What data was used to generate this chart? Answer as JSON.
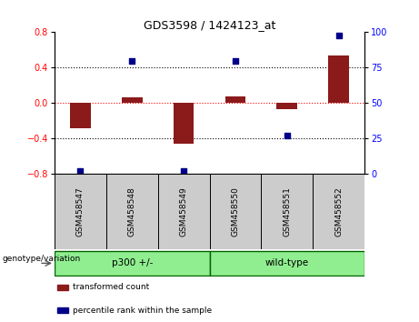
{
  "title": "GDS3598 / 1424123_at",
  "samples": [
    "GSM458547",
    "GSM458548",
    "GSM458549",
    "GSM458550",
    "GSM458551",
    "GSM458552"
  ],
  "red_values": [
    -0.28,
    0.06,
    -0.46,
    0.07,
    -0.07,
    0.54
  ],
  "blue_values_pct": [
    2,
    80,
    2,
    80,
    27,
    98
  ],
  "group_label": "genotype/variation",
  "group_info": [
    {
      "label": "p300 +/-",
      "start": 0,
      "end": 3,
      "color": "#90EE90"
    },
    {
      "label": "wild-type",
      "start": 3,
      "end": 6,
      "color": "#90EE90"
    }
  ],
  "ylim_left": [
    -0.8,
    0.8
  ],
  "ylim_right": [
    0,
    100
  ],
  "yticks_left": [
    -0.8,
    -0.4,
    0.0,
    0.4,
    0.8
  ],
  "yticks_right": [
    0,
    25,
    50,
    75,
    100
  ],
  "hlines": [
    -0.4,
    0.0,
    0.4
  ],
  "hline_styles": [
    "dotted",
    "dotted",
    "dotted"
  ],
  "hline_colors": [
    "black",
    "red",
    "black"
  ],
  "hline_lw": [
    0.8,
    0.8,
    0.8
  ],
  "bar_color": "#8B1A1A",
  "dot_color": "#00008B",
  "bar_width": 0.4,
  "legend_items": [
    {
      "label": "transformed count",
      "color": "#8B1A1A"
    },
    {
      "label": "percentile rank within the sample",
      "color": "#00008B"
    }
  ],
  "sample_box_color": "#CCCCCC",
  "fig_bg": "#FFFFFF"
}
